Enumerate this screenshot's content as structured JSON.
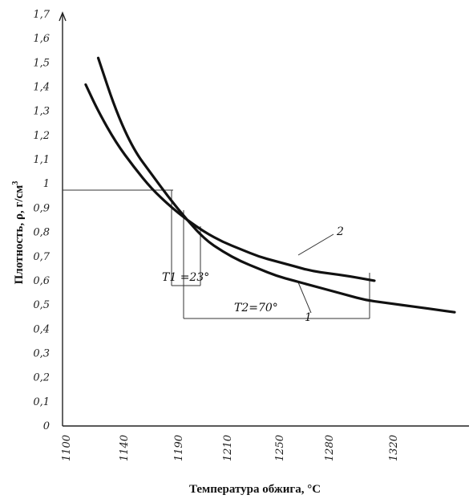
{
  "chart_data": {
    "type": "line",
    "xlabel": "Температура обжига, °C",
    "ylabel": "Плотность, ρ, г/см",
    "ylabel_sup": "3",
    "x_ticks": [
      "1100",
      "1140",
      "1190",
      "1210",
      "1250",
      "1280",
      "1320"
    ],
    "y_ticks": [
      "0",
      "0,1",
      "0,2",
      "0,3",
      "0,4",
      "0,5",
      "0,6",
      "0,7",
      "0,8",
      "0,9",
      "1",
      "1,1",
      "1,2",
      "1,3",
      "1,4",
      "1,5",
      "1,6",
      "1,7"
    ],
    "ylim": [
      0,
      1.7
    ],
    "grid": false,
    "series": [
      {
        "name": "1",
        "points": [
          [
            1120,
            1.52
          ],
          [
            1130,
            1.3
          ],
          [
            1140,
            1.14
          ],
          [
            1150,
            1.04
          ],
          [
            1160,
            0.94
          ],
          [
            1170,
            0.85
          ],
          [
            1180,
            0.77
          ],
          [
            1190,
            0.72
          ],
          [
            1200,
            0.68
          ],
          [
            1210,
            0.65
          ],
          [
            1220,
            0.62
          ],
          [
            1230,
            0.6
          ],
          [
            1240,
            0.58
          ],
          [
            1250,
            0.56
          ],
          [
            1260,
            0.54
          ],
          [
            1270,
            0.52
          ],
          [
            1280,
            0.51
          ],
          [
            1290,
            0.5
          ],
          [
            1300,
            0.49
          ],
          [
            1310,
            0.48
          ],
          [
            1320,
            0.47
          ]
        ]
      },
      {
        "name": "2",
        "points": [
          [
            1113,
            1.41
          ],
          [
            1120,
            1.3
          ],
          [
            1130,
            1.17
          ],
          [
            1140,
            1.07
          ],
          [
            1150,
            0.98
          ],
          [
            1160,
            0.91
          ],
          [
            1170,
            0.85
          ],
          [
            1180,
            0.8
          ],
          [
            1190,
            0.76
          ],
          [
            1200,
            0.73
          ],
          [
            1210,
            0.7
          ],
          [
            1220,
            0.68
          ],
          [
            1230,
            0.66
          ],
          [
            1240,
            0.64
          ],
          [
            1250,
            0.63
          ],
          [
            1260,
            0.62
          ],
          [
            1275,
            0.6
          ]
        ]
      }
    ],
    "annotations": {
      "t1": "T1 =23°",
      "t2": "T2=70°",
      "label_1": "1",
      "label_2": "2"
    }
  }
}
